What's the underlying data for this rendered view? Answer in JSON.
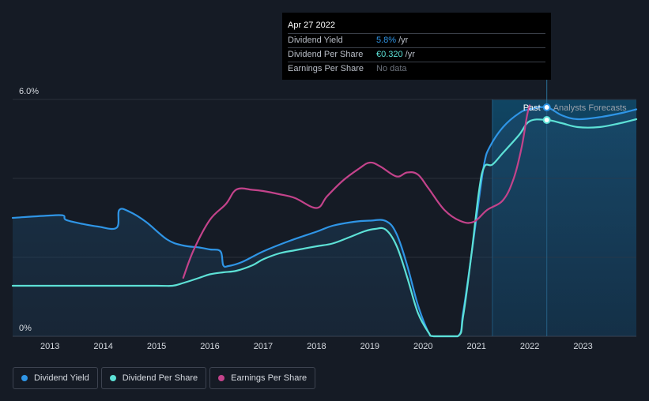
{
  "chart_data": {
    "type": "line",
    "title": "",
    "xlabel": "",
    "ylabel": "",
    "ylim": [
      0,
      6.0
    ],
    "xlim": [
      2012.3,
      2024.0
    ],
    "y_tick_labels": [
      "6.0%",
      "0%"
    ],
    "x_tick_labels": [
      "2013",
      "2014",
      "2015",
      "2016",
      "2017",
      "2018",
      "2019",
      "2020",
      "2021",
      "2022",
      "2023"
    ],
    "x_ticks": [
      2013,
      2014,
      2015,
      2016,
      2017,
      2018,
      2019,
      2020,
      2021,
      2022,
      2023
    ],
    "past_label": "Past",
    "forecast_label": "Analysts Forecasts",
    "forecast_start": 2021.3,
    "current_date": 2022.32,
    "series": [
      {
        "name": "Dividend Yield",
        "color": "#2f95e6",
        "area": true,
        "points": [
          [
            2012.3,
            3.0
          ],
          [
            2013.0,
            3.06
          ],
          [
            2013.25,
            3.06
          ],
          [
            2013.3,
            2.95
          ],
          [
            2013.6,
            2.85
          ],
          [
            2013.9,
            2.78
          ],
          [
            2014.25,
            2.75
          ],
          [
            2014.3,
            3.2
          ],
          [
            2014.5,
            3.15
          ],
          [
            2014.8,
            2.9
          ],
          [
            2015.2,
            2.45
          ],
          [
            2015.5,
            2.3
          ],
          [
            2015.8,
            2.25
          ],
          [
            2016.0,
            2.2
          ],
          [
            2016.2,
            2.15
          ],
          [
            2016.25,
            1.8
          ],
          [
            2016.35,
            1.78
          ],
          [
            2016.6,
            1.88
          ],
          [
            2017.0,
            2.15
          ],
          [
            2017.5,
            2.42
          ],
          [
            2018.0,
            2.65
          ],
          [
            2018.3,
            2.8
          ],
          [
            2018.7,
            2.9
          ],
          [
            2019.0,
            2.93
          ],
          [
            2019.3,
            2.92
          ],
          [
            2019.5,
            2.6
          ],
          [
            2019.7,
            1.8
          ],
          [
            2019.9,
            0.8
          ],
          [
            2020.1,
            0.1
          ],
          [
            2020.2,
            0.0
          ],
          [
            2020.65,
            0.0
          ],
          [
            2020.75,
            0.6
          ],
          [
            2020.9,
            2.0
          ],
          [
            2021.05,
            3.5
          ],
          [
            2021.15,
            4.4
          ],
          [
            2021.25,
            4.8
          ],
          [
            2021.5,
            5.3
          ],
          [
            2021.8,
            5.65
          ],
          [
            2022.0,
            5.75
          ],
          [
            2022.32,
            5.8
          ],
          [
            2022.6,
            5.6
          ],
          [
            2022.9,
            5.5
          ],
          [
            2023.3,
            5.55
          ],
          [
            2023.7,
            5.65
          ],
          [
            2024.0,
            5.75
          ]
        ]
      },
      {
        "name": "Dividend Per Share",
        "color": "#5de1d6",
        "area": false,
        "points": [
          [
            2012.3,
            1.28
          ],
          [
            2013.0,
            1.28
          ],
          [
            2014.0,
            1.28
          ],
          [
            2015.0,
            1.28
          ],
          [
            2015.3,
            1.28
          ],
          [
            2015.5,
            1.35
          ],
          [
            2015.8,
            1.48
          ],
          [
            2016.0,
            1.57
          ],
          [
            2016.25,
            1.62
          ],
          [
            2016.5,
            1.66
          ],
          [
            2016.8,
            1.8
          ],
          [
            2017.0,
            1.95
          ],
          [
            2017.3,
            2.1
          ],
          [
            2017.6,
            2.18
          ],
          [
            2018.0,
            2.28
          ],
          [
            2018.3,
            2.35
          ],
          [
            2018.6,
            2.5
          ],
          [
            2018.9,
            2.66
          ],
          [
            2019.1,
            2.72
          ],
          [
            2019.3,
            2.7
          ],
          [
            2019.5,
            2.3
          ],
          [
            2019.7,
            1.5
          ],
          [
            2019.9,
            0.6
          ],
          [
            2020.1,
            0.1
          ],
          [
            2020.2,
            0.0
          ],
          [
            2020.65,
            0.0
          ],
          [
            2020.75,
            0.5
          ],
          [
            2020.9,
            2.0
          ],
          [
            2021.05,
            3.7
          ],
          [
            2021.15,
            4.3
          ],
          [
            2021.3,
            4.35
          ],
          [
            2021.5,
            4.65
          ],
          [
            2021.8,
            5.1
          ],
          [
            2022.0,
            5.45
          ],
          [
            2022.32,
            5.48
          ],
          [
            2022.6,
            5.4
          ],
          [
            2022.9,
            5.3
          ],
          [
            2023.3,
            5.3
          ],
          [
            2023.7,
            5.4
          ],
          [
            2024.0,
            5.5
          ]
        ]
      },
      {
        "name": "Earnings Per Share",
        "color": "#c3438b",
        "area": false,
        "points": [
          [
            2015.5,
            1.48
          ],
          [
            2015.7,
            2.2
          ],
          [
            2016.0,
            2.95
          ],
          [
            2016.3,
            3.35
          ],
          [
            2016.5,
            3.72
          ],
          [
            2016.8,
            3.71
          ],
          [
            2017.0,
            3.68
          ],
          [
            2017.3,
            3.6
          ],
          [
            2017.6,
            3.5
          ],
          [
            2018.0,
            3.25
          ],
          [
            2018.2,
            3.55
          ],
          [
            2018.5,
            3.95
          ],
          [
            2018.8,
            4.25
          ],
          [
            2019.0,
            4.4
          ],
          [
            2019.2,
            4.3
          ],
          [
            2019.5,
            4.05
          ],
          [
            2019.7,
            4.15
          ],
          [
            2019.9,
            4.1
          ],
          [
            2020.1,
            3.75
          ],
          [
            2020.4,
            3.2
          ],
          [
            2020.7,
            2.92
          ],
          [
            2020.95,
            2.9
          ],
          [
            2021.2,
            3.2
          ],
          [
            2021.5,
            3.45
          ],
          [
            2021.7,
            4.0
          ],
          [
            2021.85,
            4.8
          ],
          [
            2021.95,
            5.6
          ],
          [
            2022.0,
            5.85
          ]
        ]
      }
    ],
    "legend": [
      "Dividend Yield",
      "Dividend Per Share",
      "Earnings Per Share"
    ]
  },
  "tooltip": {
    "date": "Apr 27 2022",
    "rows": [
      {
        "label": "Dividend Yield",
        "value": "5.8%",
        "unit": "/yr",
        "color": "#2f95e6"
      },
      {
        "label": "Dividend Per Share",
        "value": "€0.320",
        "unit": "/yr",
        "color": "#5de1d6"
      },
      {
        "label": "Earnings Per Share",
        "value": "No data",
        "unit": "",
        "color": "#6c727c"
      }
    ]
  },
  "legend": {
    "items": [
      {
        "label": "Dividend Yield",
        "color": "#2f95e6"
      },
      {
        "label": "Dividend Per Share",
        "color": "#5de1d6"
      },
      {
        "label": "Earnings Per Share",
        "color": "#c3438b"
      }
    ]
  }
}
